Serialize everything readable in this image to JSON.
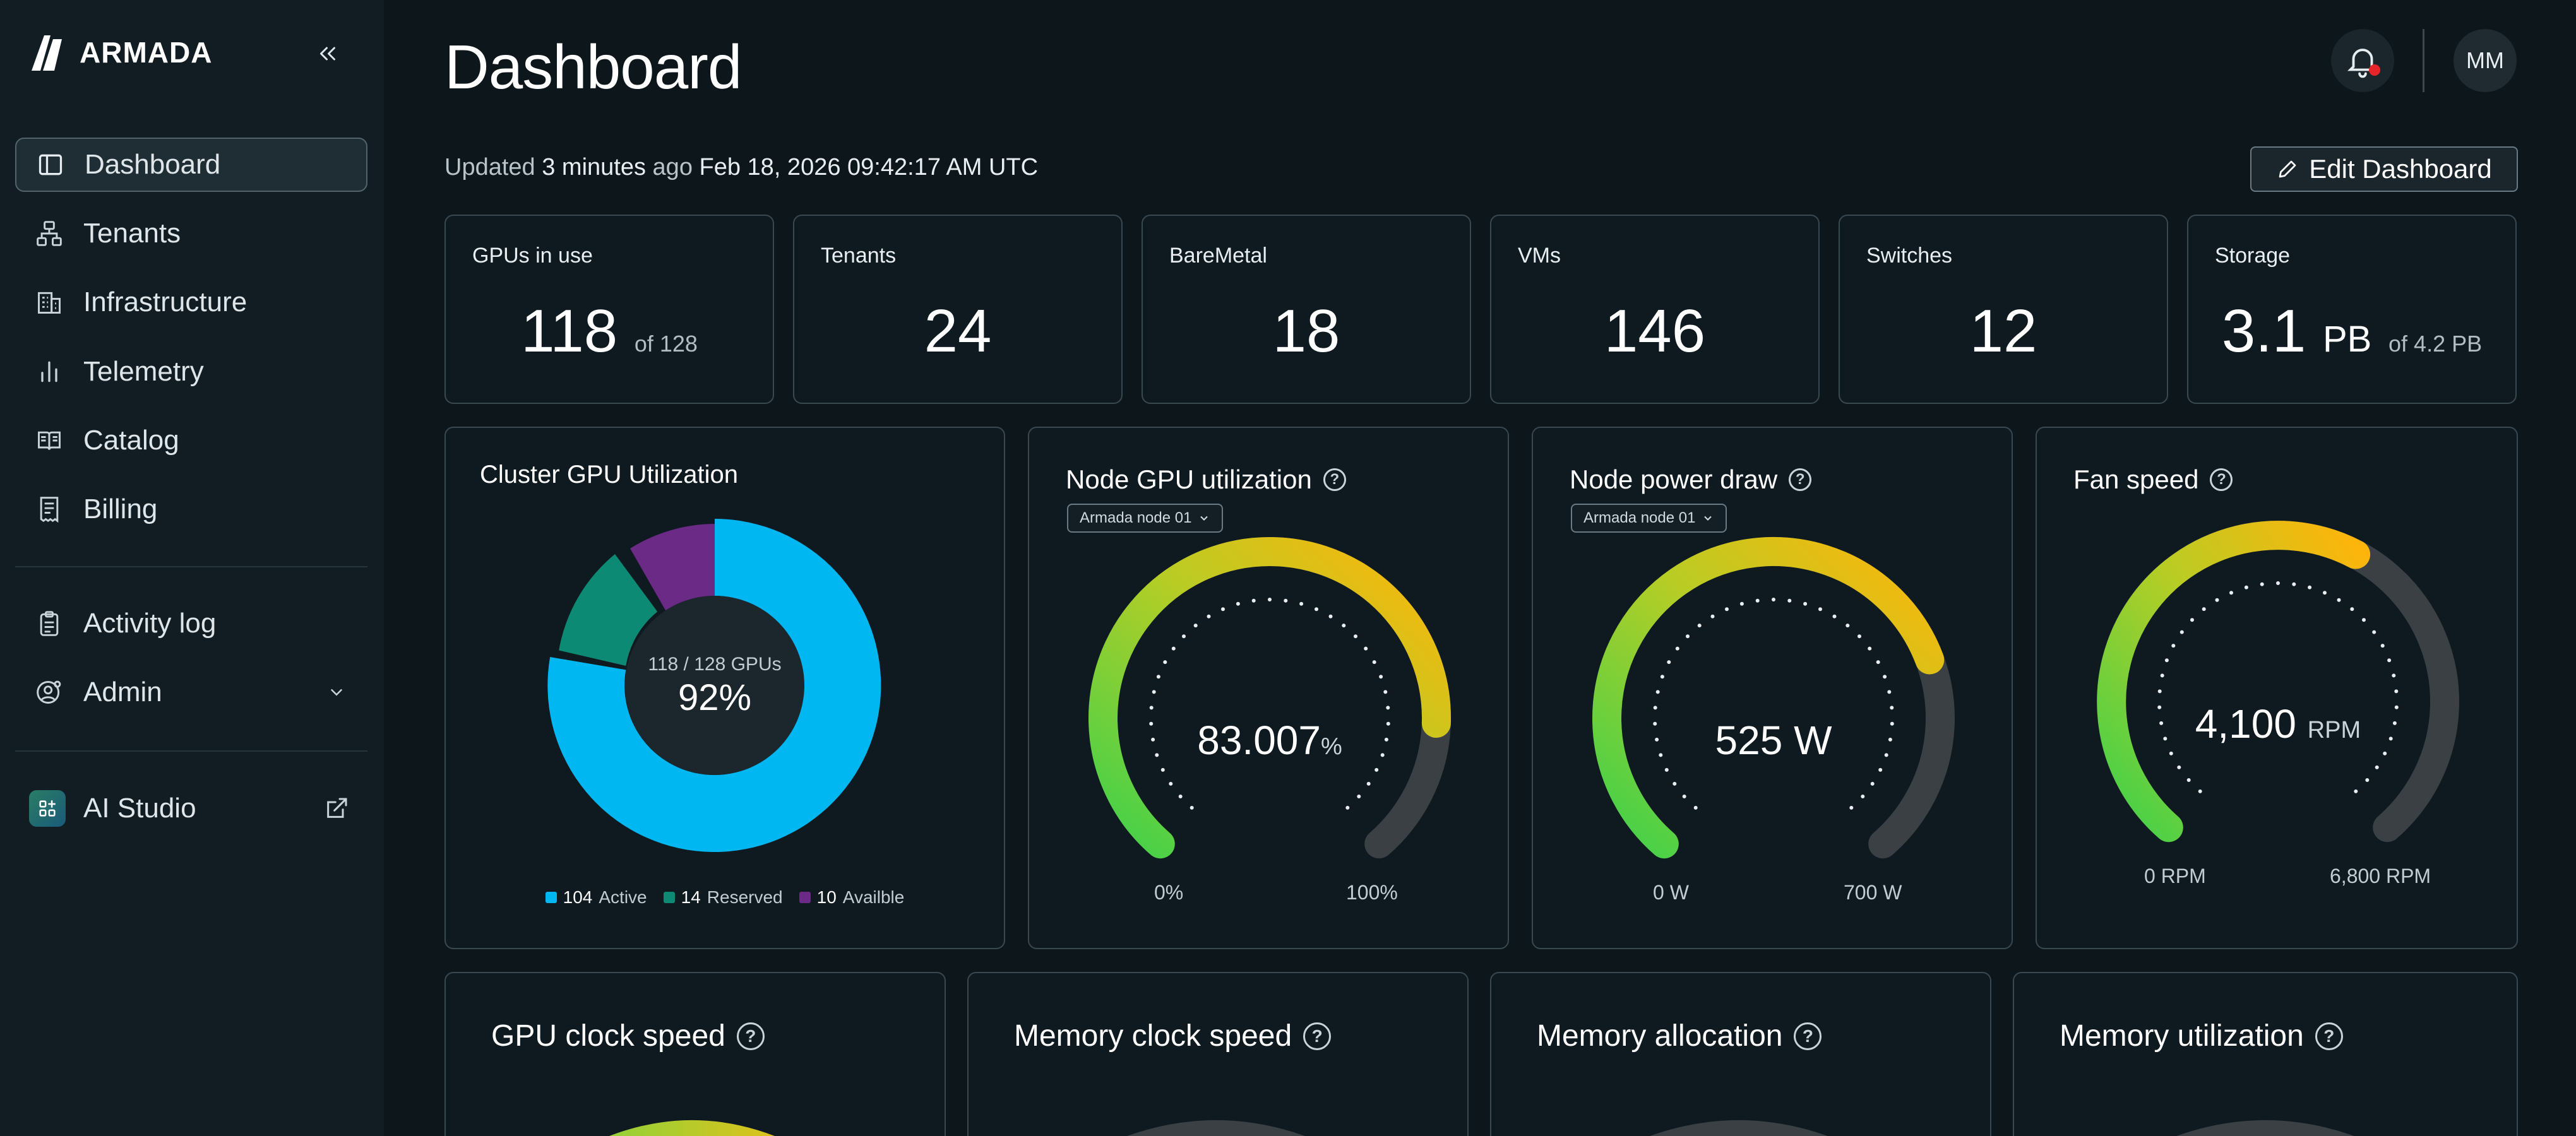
{
  "brand": {
    "name": "ARMADA"
  },
  "sidebar": {
    "items": [
      {
        "label": "Dashboard",
        "icon": "panel-layout-icon",
        "active": true
      },
      {
        "label": "Tenants",
        "icon": "hierarchy-icon"
      },
      {
        "label": "Infrastructure",
        "icon": "building-icon"
      },
      {
        "label": "Telemetry",
        "icon": "bar-chart-icon"
      },
      {
        "label": "Catalog",
        "icon": "book-icon"
      },
      {
        "label": "Billing",
        "icon": "receipt-icon"
      }
    ],
    "secondary": [
      {
        "label": "Activity log",
        "icon": "clipboard-icon"
      },
      {
        "label": "Admin",
        "icon": "user-gear-icon"
      }
    ],
    "ai_studio": {
      "label": "AI Studio",
      "icon": "ai-studio-icon"
    }
  },
  "header": {
    "title": "Dashboard",
    "avatar_initials": "MM",
    "updated_prefix": "Updated",
    "updated_ago": "3 minutes",
    "updated_suffix": "ago",
    "updated_timestamp": "Feb 18, 2026 09:42:17 AM UTC",
    "edit_label": "Edit Dashboard"
  },
  "stats": [
    {
      "label": "GPUs in use",
      "value": "118",
      "sub": "of 128"
    },
    {
      "label": "Tenants",
      "value": "24"
    },
    {
      "label": "BareMetal",
      "value": "18"
    },
    {
      "label": "VMs",
      "value": "146"
    },
    {
      "label": "Switches",
      "value": "12"
    },
    {
      "label": "Storage",
      "value": "3.1",
      "unit": "PB",
      "sub": "of 4.2 PB"
    }
  ],
  "cluster": {
    "title": "Cluster GPU Utilization",
    "center_sub": "118 / 128 GPUs",
    "center_value": "92%",
    "legend": [
      {
        "value": "104",
        "label": "Active",
        "color": "#00b7f1"
      },
      {
        "value": "14",
        "label": "Reserved",
        "color": "#0c8a73"
      },
      {
        "value": "10",
        "label": "Availble",
        "color": "#6a2a85"
      }
    ]
  },
  "node_gpu": {
    "title": "Node GPU utilization",
    "select": "Armada node 01",
    "value": "83.007",
    "unit": "%",
    "min": "0%",
    "max": "100%",
    "fraction": 0.83
  },
  "node_power": {
    "title": "Node power draw",
    "select": "Armada node 01",
    "value": "525 W",
    "min": "0 W",
    "max": "700 W",
    "fraction": 0.75
  },
  "fan": {
    "title": "Fan speed",
    "value": "4,100",
    "unit": "RPM",
    "min": "0 RPM",
    "max": "6,800 RPM",
    "fraction": 0.6
  },
  "bottom_panels": [
    {
      "title": "GPU clock speed"
    },
    {
      "title": "Memory clock speed"
    },
    {
      "title": "Memory allocation"
    },
    {
      "title": "Memory utilization"
    }
  ]
}
